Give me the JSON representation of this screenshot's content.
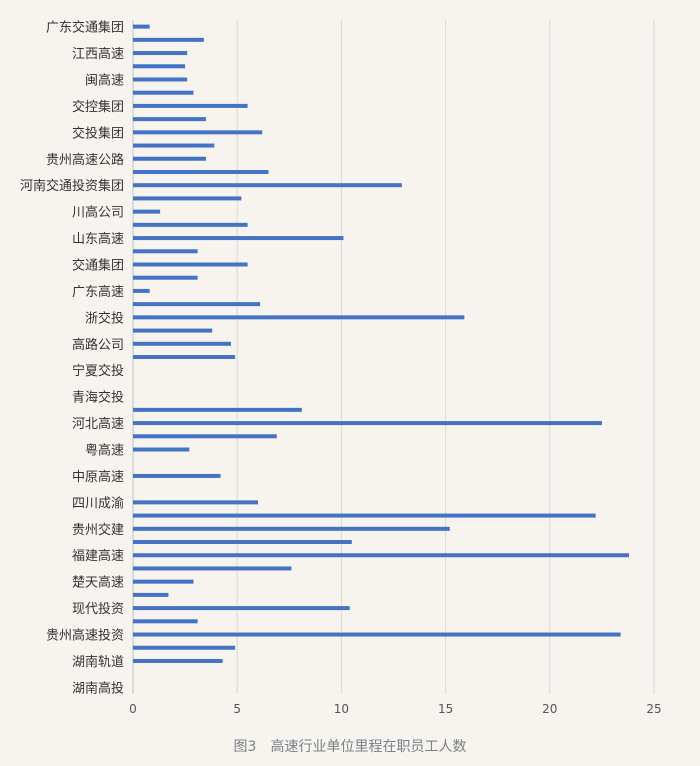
{
  "chart_data": {
    "type": "bar",
    "orientation": "horizontal",
    "title": "图3　高速行业单位里程在职员工人数",
    "xlim": [
      0,
      25
    ],
    "x_ticks": [
      0,
      5,
      10,
      15,
      20,
      25
    ],
    "grid": true,
    "color": "#4472c4",
    "bars": [
      {
        "category": "广东交通集团",
        "value": 0.8
      },
      {
        "category": "",
        "value": 3.4
      },
      {
        "category": "江西高速",
        "value": 2.6
      },
      {
        "category": "",
        "value": 2.5
      },
      {
        "category": "闽高速",
        "value": 2.6
      },
      {
        "category": "",
        "value": 2.9
      },
      {
        "category": "交控集团",
        "value": 5.5
      },
      {
        "category": "",
        "value": 3.5
      },
      {
        "category": "交投集团",
        "value": 6.2
      },
      {
        "category": "",
        "value": 3.9
      },
      {
        "category": "贵州高速公路",
        "value": 3.5
      },
      {
        "category": "",
        "value": 6.5
      },
      {
        "category": "河南交通投资集团",
        "value": 12.9
      },
      {
        "category": "",
        "value": 5.2
      },
      {
        "category": "川高公司",
        "value": 1.3
      },
      {
        "category": "",
        "value": 5.5
      },
      {
        "category": "山东高速",
        "value": 10.1
      },
      {
        "category": "",
        "value": 3.1
      },
      {
        "category": "交通集团",
        "value": 5.5
      },
      {
        "category": "",
        "value": 3.1
      },
      {
        "category": "广东高速",
        "value": 0.8
      },
      {
        "category": "",
        "value": 6.1
      },
      {
        "category": "浙交投",
        "value": 15.9
      },
      {
        "category": "",
        "value": 3.8
      },
      {
        "category": "高路公司",
        "value": 4.7
      },
      {
        "category": "",
        "value": 4.9
      },
      {
        "category": "宁夏交投",
        "value": 0
      },
      {
        "category": "",
        "value": 0
      },
      {
        "category": "青海交投",
        "value": 0
      },
      {
        "category": "",
        "value": 8.1
      },
      {
        "category": "河北高速",
        "value": 22.5
      },
      {
        "category": "",
        "value": 6.9
      },
      {
        "category": "粤高速",
        "value": 2.7
      },
      {
        "category": "",
        "value": 0
      },
      {
        "category": "中原高速",
        "value": 4.2
      },
      {
        "category": "",
        "value": 0
      },
      {
        "category": "四川成渝",
        "value": 6.0
      },
      {
        "category": "",
        "value": 22.2
      },
      {
        "category": "贵州交建",
        "value": 15.2
      },
      {
        "category": "",
        "value": 10.5
      },
      {
        "category": "福建高速",
        "value": 23.8
      },
      {
        "category": "",
        "value": 7.6
      },
      {
        "category": "楚天高速",
        "value": 2.9
      },
      {
        "category": "",
        "value": 1.7
      },
      {
        "category": "现代投资",
        "value": 10.4
      },
      {
        "category": "",
        "value": 3.1
      },
      {
        "category": "贵州高速投资",
        "value": 23.4
      },
      {
        "category": "",
        "value": 4.9
      },
      {
        "category": "湖南轨道",
        "value": 4.3
      },
      {
        "category": "",
        "value": 0
      },
      {
        "category": "湖南高投",
        "value": 0
      }
    ]
  }
}
